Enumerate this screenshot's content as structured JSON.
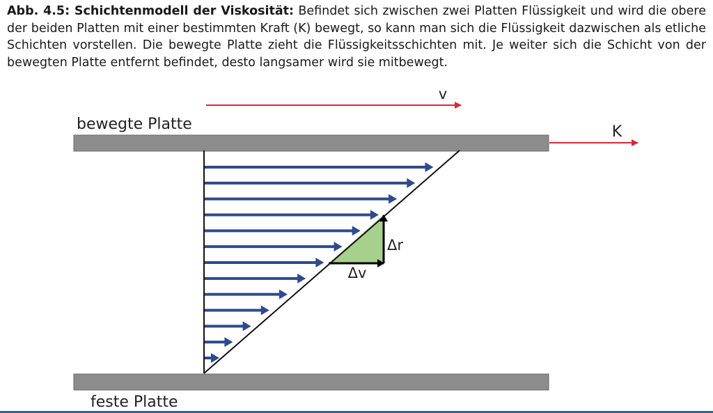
{
  "caption": {
    "label": "Abb. 4.5: Schichtenmodell der Viskosität:",
    "text": "Befindet sich zwischen zwei Platten Flüssigkeit und wird die obere der beiden Platten mit einer bestimmten Kraft (K) bewegt, so kann man sich die Flüssigkeit dazwischen als etliche Schichten vorstellen. Die bewegte Platte zieht die Flüssigkeitsschichten mit. Je weiter sich die Schicht von der bewegten Platte entfernt befindet, desto langsamer wird sie mitbewegt."
  },
  "diagram": {
    "top_plate_label": "bewegte Platte",
    "bottom_plate_label": "feste Platte",
    "velocity_label": "v",
    "force_label": "K",
    "delta_r_label": "Δr",
    "delta_v_label": "Δv",
    "layer_count": 13,
    "colors": {
      "plate": "#8c8c8c",
      "layer_arrow": "#2e4a8c",
      "velocity_arrow": "#d42a37",
      "force_arrow": "#d42a37",
      "triangle_fill": "#a8d08d",
      "profile_line": "#111111"
    }
  }
}
